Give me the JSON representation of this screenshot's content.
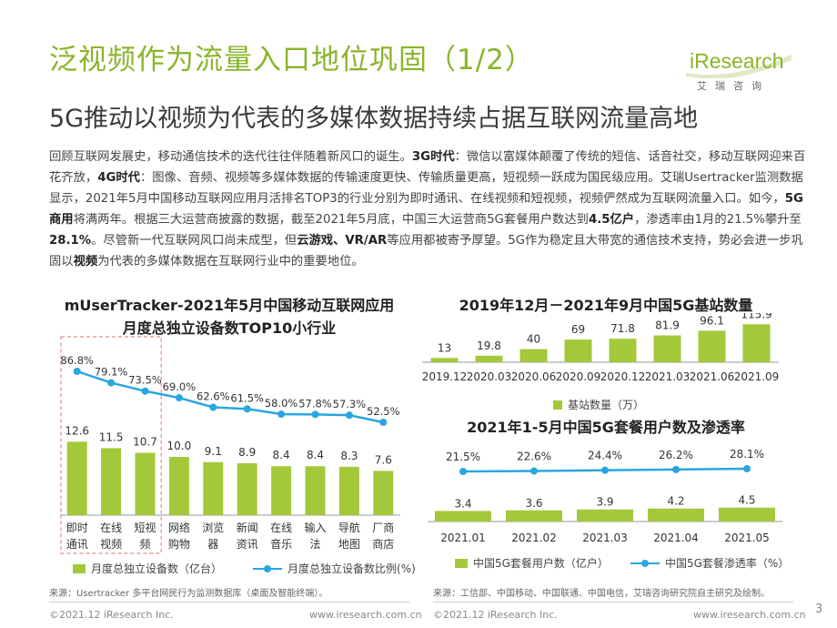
{
  "header": {
    "title": "泛视频作为流量入口地位巩固（1/2）",
    "subtitle": "5G推动以视频为代表的多媒体数据持续占据互联网流量高地",
    "logo_text": "iResearch",
    "logo_sub": "艾瑞咨询"
  },
  "paragraph": [
    {
      "t": "回顾互联网发展史，移动通信技术的迭代往往伴随着新风口的诞生。",
      "b": false
    },
    {
      "t": "3G时代",
      "b": true
    },
    {
      "t": "：微信以富媒体颠覆了传统的短信、话音社交，移动互联网迎来百花齐放，",
      "b": false
    },
    {
      "t": "4G时代",
      "b": true
    },
    {
      "t": "：图像、音频、视频等多媒体数据的传输速度更快、传输质量更高，短视频一跃成为国民级应用。艾瑞Usertracker监测数据显示，2021年5月中国移动互联网应用月活排名TOP3的行业分别为即时通讯、在线视频和短视频，视频俨然成为互联网流量入口。如今，",
      "b": false
    },
    {
      "t": "5G商用",
      "b": true
    },
    {
      "t": "将满两年。根据三大运营商披露的数据，截至2021年5月底，中国三大运营商5G套餐用户数达到",
      "b": false
    },
    {
      "t": "4.5亿户",
      "b": true
    },
    {
      "t": "，渗透率由1月的21.5%攀升至",
      "b": false
    },
    {
      "t": "28.1%",
      "b": true
    },
    {
      "t": "。尽管新一代互联网风口尚未成型，但",
      "b": false
    },
    {
      "t": "云游戏、VR/AR",
      "b": true
    },
    {
      "t": "等应用都被寄予厚望。5G作为稳定且大带宽的通信技术支持，势必会进一步巩固以",
      "b": false
    },
    {
      "t": "视频",
      "b": true
    },
    {
      "t": "为代表的多媒体数据在互联网行业中的重要地位。",
      "b": false
    }
  ],
  "chart_data": [
    {
      "type": "bar",
      "title": "mUserTracker-2021年5月中国移动互联网应用",
      "subtitle": "月度总独立设备数TOP10小行业",
      "categories": [
        "即时通讯",
        "在线视频",
        "短视频",
        "网络购物",
        "浏览器",
        "新闻资讯",
        "在线音乐",
        "输入法",
        "导航地图",
        "厂商商店"
      ],
      "category_lines": [
        [
          "即时",
          "通讯"
        ],
        [
          "在线",
          "视频"
        ],
        [
          "短视",
          "频"
        ],
        [
          "网络",
          "购物"
        ],
        [
          "浏览",
          "器"
        ],
        [
          "新闻",
          "资讯"
        ],
        [
          "在线",
          "音乐"
        ],
        [
          "输入",
          "法"
        ],
        [
          "导航",
          "地图"
        ],
        [
          "厂商",
          "商店"
        ]
      ],
      "series": [
        {
          "name": "月度总独立设备数（亿台）",
          "type": "bar",
          "values": [
            12.6,
            11.5,
            10.7,
            10.0,
            9.1,
            8.9,
            8.4,
            8.4,
            8.3,
            7.6
          ]
        },
        {
          "name": "月度总独立设备数比例(%)",
          "type": "line",
          "values": [
            86.8,
            79.1,
            73.5,
            69.0,
            62.6,
            61.5,
            58.0,
            57.8,
            57.3,
            52.5
          ]
        }
      ],
      "labels_bar": [
        "12.6",
        "11.5",
        "10.7",
        "10.0",
        "9.1",
        "8.9",
        "8.4",
        "8.4",
        "8.3",
        "7.6"
      ],
      "labels_line": [
        "86.8%",
        "79.1%",
        "73.5%",
        "69.0%",
        "62.6%",
        "61.5%",
        "58.0%",
        "57.8%",
        "57.3%",
        "52.5%"
      ],
      "highlight": "first 3 categories boxed with dashed red outline",
      "source": "来源：Usertracker 多平台网民行为监测数据库（桌面及智能终端）。"
    },
    {
      "type": "bar",
      "title": "2019年12月－2021年9月中国5G基站数量",
      "categories": [
        "2019.12",
        "2020.03",
        "2020.06",
        "2020.09",
        "2020.12",
        "2021.03",
        "2021.06",
        "2021.09"
      ],
      "series": [
        {
          "name": "基站数量（万）",
          "values": [
            13,
            19.8,
            40,
            69,
            71.8,
            81.9,
            96.1,
            115.9
          ]
        }
      ],
      "labels": [
        "13",
        "19.8",
        "40",
        "69",
        "71.8",
        "81.9",
        "96.1",
        "115.9"
      ]
    },
    {
      "type": "bar",
      "title": "2021年1-5月中国5G套餐用户数及渗透率",
      "categories": [
        "2021.01",
        "2021.02",
        "2021.03",
        "2021.04",
        "2021.05"
      ],
      "series": [
        {
          "name": "中国5G套餐用户数（亿户）",
          "type": "bar",
          "values": [
            3.4,
            3.6,
            3.9,
            4.2,
            4.5
          ]
        },
        {
          "name": "中国5G套餐渗透率（%）",
          "type": "line",
          "values": [
            21.5,
            22.6,
            24.4,
            26.2,
            28.1
          ]
        }
      ],
      "labels_bar": [
        "3.4",
        "3.6",
        "3.9",
        "4.2",
        "4.5"
      ],
      "labels_line": [
        "21.5%",
        "22.6%",
        "24.4%",
        "26.2%",
        "28.1%"
      ],
      "source": "来源：工信部、中国移动、中国联通、中国电信，艾瑞咨询研究院自主研究及绘制。"
    }
  ],
  "footer": {
    "left_copyright": "©2021.12 iResearch Inc.",
    "left_url": "www.iresearch.com.cn",
    "right_copyright": "©2021.12 iResearch Inc.",
    "right_url": "www.iresearch.com.cn",
    "page_number": "3"
  },
  "colors": {
    "accent": "#8ab42a",
    "bar": "#a3c93a",
    "line": "#29a6e0",
    "highlight": "#e58a8a"
  }
}
